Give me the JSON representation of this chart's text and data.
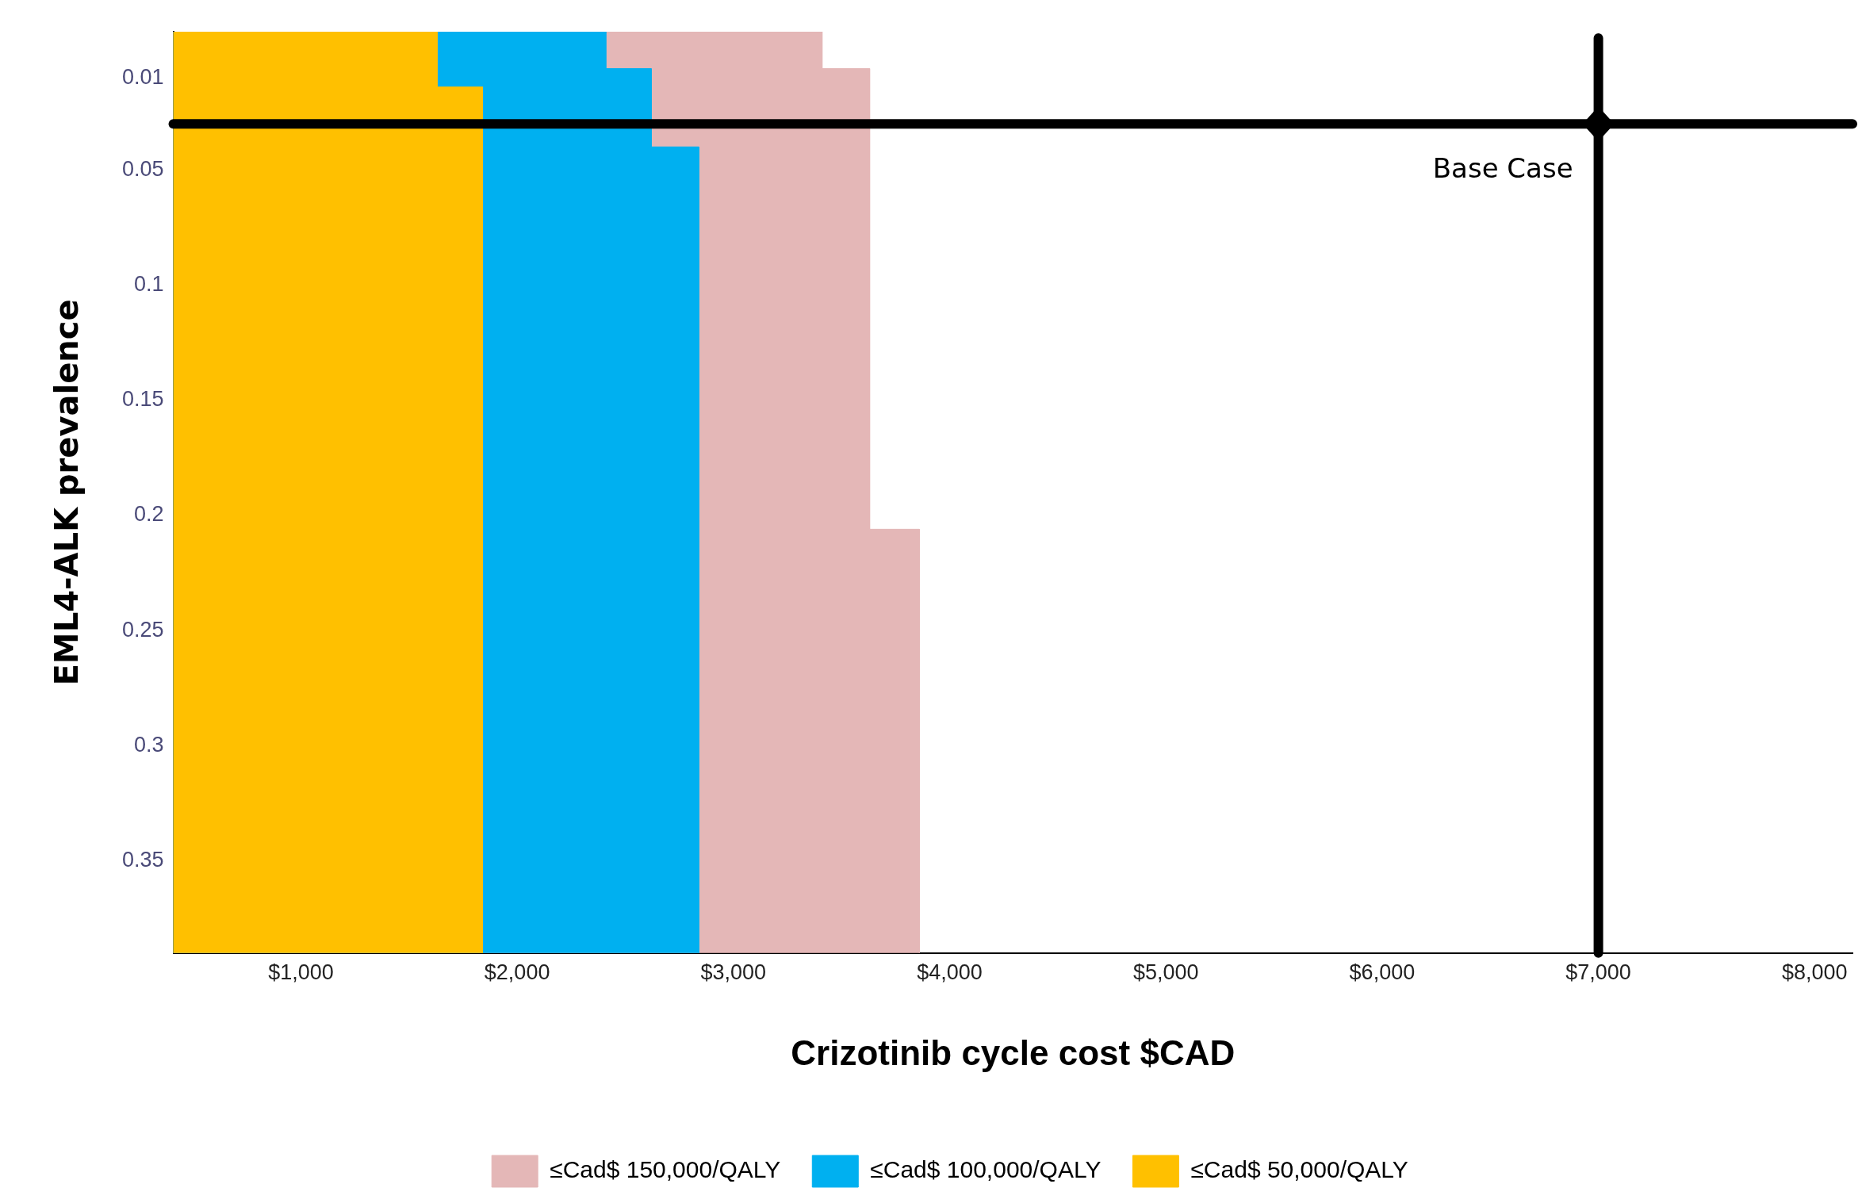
{
  "chart_data": {
    "type": "area",
    "orientation": "horizontal",
    "xlabel": "Crizotinib cycle cost $CAD",
    "ylabel": "EML4-ALK prevalence",
    "xlim": [
      410,
      8175
    ],
    "xticks": [
      {
        "value": 1000,
        "label": "$1,000"
      },
      {
        "value": 2000,
        "label": "$2,000"
      },
      {
        "value": 3000,
        "label": "$3,000"
      },
      {
        "value": 4000,
        "label": "$4,000"
      },
      {
        "value": 5000,
        "label": "$5,000"
      },
      {
        "value": 6000,
        "label": "$6,000"
      },
      {
        "value": 7000,
        "label": "$7,000"
      },
      {
        "value": 8000,
        "label": "$8,000"
      }
    ],
    "ylim": [
      0.39,
      -0.01
    ],
    "yticks": [
      0.01,
      0.05,
      0.1,
      0.15,
      0.2,
      0.25,
      0.3,
      0.35
    ],
    "series": [
      {
        "name": "≤Cad$ 50,000/QALY",
        "color": "#ffc000",
        "x": [
          -0.01,
          0.014,
          0.014,
          0.39
        ],
        "values": [
          1630,
          1630,
          1840,
          1840
        ]
      },
      {
        "name": "≤Cad$ 100,000/QALY",
        "color": "#00b0f0",
        "x": [
          -0.01,
          0.006,
          0.006,
          0.04,
          0.04,
          0.39
        ],
        "values": [
          2410,
          2410,
          2620,
          2620,
          2840,
          2840
        ]
      },
      {
        "name": "≤Cad$ 150,000/QALY",
        "color": "#e4b7b7",
        "x": [
          -0.01,
          0.006,
          0.006,
          0.206,
          0.206,
          0.39
        ],
        "values": [
          3410,
          3410,
          3630,
          3630,
          3860,
          3860
        ]
      }
    ],
    "ref_lines": [
      {
        "axis": "x",
        "value": 7000,
        "color": "#000000"
      },
      {
        "axis": "y",
        "value": 0.03,
        "color": "#000000"
      }
    ],
    "annotations": [
      {
        "text": "Base Case",
        "x": 7000,
        "y": 0.03
      }
    ],
    "legend": "bottom",
    "grid": false
  }
}
